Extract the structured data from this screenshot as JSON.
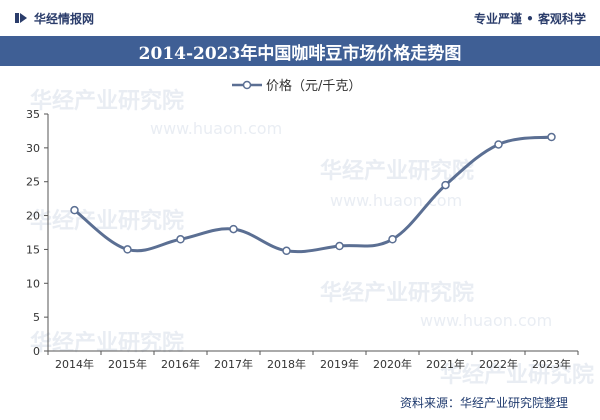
{
  "header": {
    "brand": "华经情报网",
    "slogan": "专业严谨 • 客观科学"
  },
  "chart_data": {
    "type": "line",
    "title": "2014-2023年中国咖啡豆市场价格走势图",
    "categories": [
      "2014年",
      "2015年",
      "2016年",
      "2017年",
      "2018年",
      "2019年",
      "2020年",
      "2021年",
      "2022年",
      "2023年"
    ],
    "series": [
      {
        "name": "价格（元/千克）",
        "values": [
          20.8,
          15.0,
          16.5,
          18.0,
          14.8,
          15.5,
          16.5,
          24.5,
          30.5,
          31.6
        ]
      }
    ],
    "xlabel": "",
    "ylabel": "",
    "ylim": [
      0,
      35
    ],
    "yticks": [
      0,
      5,
      10,
      15,
      20,
      25,
      30,
      35
    ],
    "grid": false,
    "legend": "top-center",
    "color": "#5b6f93"
  },
  "footer": {
    "source": "资料来源：华经产业研究院整理"
  },
  "watermark": {
    "text": "华经产业研究院",
    "url": "www.huaon.com"
  }
}
